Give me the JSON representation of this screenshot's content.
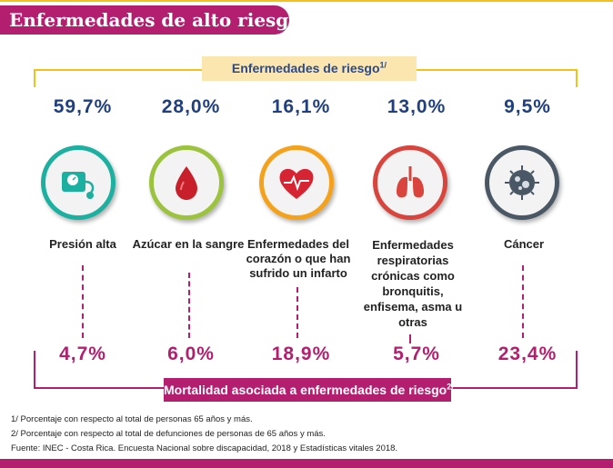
{
  "header": {
    "title": "Enfermedades de alto riesgo"
  },
  "top_pill": {
    "label": "Enfermedades de riesgo",
    "sup": "1/"
  },
  "bottom_pill": {
    "label": "Mortalidad asociada a enfermedades de riesgo",
    "sup": "2/"
  },
  "diseases": [
    {
      "prevalence": "59,7%",
      "mortality": "4,7%",
      "label": "Presión alta",
      "icon": "blood-pressure-icon",
      "ring_color": "#1bb0a0"
    },
    {
      "prevalence": "28,0%",
      "mortality": "6,0%",
      "label": "Azúcar en la sangre",
      "icon": "blood-drop-icon",
      "ring_color": "#9cc33c"
    },
    {
      "prevalence": "16,1%",
      "mortality": "18,9%",
      "label": "Enfermedades del corazón o que han sufrido un infarto",
      "icon": "heart-icon",
      "ring_color": "#f5a21a"
    },
    {
      "prevalence": "13,0%",
      "mortality": "5,7%",
      "label": "Enfermedades respiratorias crónicas como bronquitis, enfisema, asma u otras",
      "icon": "lungs-icon",
      "ring_color": "#d9443c"
    },
    {
      "prevalence": "9,5%",
      "mortality": "23,4%",
      "label": "Cáncer",
      "icon": "cancer-cell-icon",
      "ring_color": "#4a5866"
    }
  ],
  "footnotes": {
    "note1": "1/ Porcentaje con respecto al total de personas 65 años y más.",
    "note2": "2/ Porcentaje con respecto al total de defunciones de personas de 65 años y más.",
    "source": "Fuente: INEC - Costa Rica. Encuesta Nacional sobre discapacidad, 2018 y Estadísticas vitales 2018."
  }
}
